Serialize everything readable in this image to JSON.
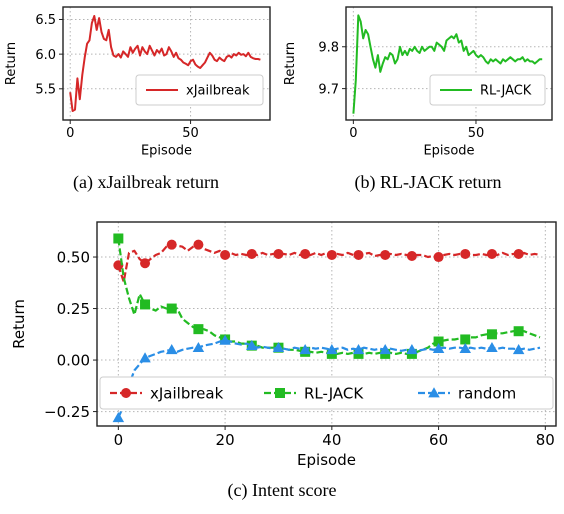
{
  "figures": [
    {
      "caption": "(a)  xJailbreak return",
      "chart_data": {
        "type": "line",
        "xlabel": "Episode",
        "ylabel": "Return",
        "xlim": [
          -3,
          83
        ],
        "ylim": [
          5.05,
          6.68
        ],
        "xticks": [
          0,
          50
        ],
        "yticks": [
          5.5,
          6.0,
          6.5
        ],
        "ytick_labels": [
          "5.5",
          "6.0",
          "6.5"
        ],
        "grid": true,
        "legend_position": "lower-right",
        "series": [
          {
            "name": "xJailbreak",
            "color": "#d62728",
            "x": [
              0,
              1,
              2,
              3,
              4,
              5,
              6,
              7,
              8,
              9,
              10,
              11,
              12,
              13,
              14,
              15,
              16,
              17,
              18,
              19,
              20,
              21,
              22,
              23,
              24,
              25,
              26,
              27,
              28,
              29,
              30,
              31,
              32,
              33,
              34,
              35,
              36,
              37,
              38,
              39,
              40,
              41,
              42,
              43,
              44,
              45,
              46,
              47,
              48,
              49,
              50,
              51,
              52,
              53,
              54,
              55,
              56,
              57,
              58,
              59,
              60,
              61,
              62,
              63,
              64,
              65,
              66,
              67,
              68,
              69,
              70,
              71,
              72,
              73,
              74,
              75,
              76,
              77,
              78,
              79
            ],
            "y": [
              5.45,
              5.18,
              5.2,
              5.65,
              5.35,
              5.7,
              5.95,
              6.15,
              6.2,
              6.45,
              6.55,
              6.35,
              6.52,
              6.32,
              6.22,
              6.2,
              6.35,
              6.1,
              5.98,
              5.96,
              6.0,
              5.95,
              6.04,
              6.0,
              5.96,
              6.1,
              6.02,
              6.08,
              6.12,
              5.98,
              6.1,
              6.04,
              6.0,
              6.12,
              6.05,
              5.98,
              6.06,
              6.02,
              6.08,
              5.98,
              6.0,
              6.1,
              6.04,
              5.96,
              6.02,
              5.94,
              5.92,
              5.88,
              5.86,
              5.84,
              5.9,
              5.92,
              5.85,
              5.82,
              5.8,
              5.84,
              5.88,
              5.95,
              6.02,
              5.98,
              5.92,
              5.9,
              5.95,
              5.92,
              5.9,
              5.96,
              5.98,
              5.95,
              6.0,
              5.98,
              6.02,
              5.99,
              6.0,
              5.97,
              6.02,
              5.96,
              5.94,
              5.93,
              5.93,
              5.92
            ]
          }
        ]
      }
    },
    {
      "caption": "(b)  RL-JACK return",
      "chart_data": {
        "type": "line",
        "xlabel": "Episode",
        "ylabel": "Return",
        "xlim": [
          -3,
          81
        ],
        "ylim": [
          9.625,
          9.895
        ],
        "xticks": [
          0,
          50
        ],
        "yticks": [
          9.7,
          9.8
        ],
        "ytick_labels": [
          "9.7",
          "9.8"
        ],
        "grid": true,
        "legend_position": "lower-right",
        "series": [
          {
            "name": "RL-JACK",
            "color": "#22bb22",
            "x": [
              0,
              1,
              2,
              3,
              4,
              5,
              6,
              7,
              8,
              9,
              10,
              11,
              12,
              13,
              14,
              15,
              16,
              17,
              18,
              19,
              20,
              21,
              22,
              23,
              24,
              25,
              26,
              27,
              28,
              29,
              30,
              31,
              32,
              33,
              34,
              35,
              36,
              37,
              38,
              39,
              40,
              41,
              42,
              43,
              44,
              45,
              46,
              47,
              48,
              49,
              50,
              51,
              52,
              53,
              54,
              55,
              56,
              57,
              58,
              59,
              60,
              61,
              62,
              63,
              64,
              65,
              66,
              67,
              68,
              69,
              70,
              71,
              72,
              73,
              74,
              75,
              76,
              77
            ],
            "y": [
              9.64,
              9.72,
              9.875,
              9.86,
              9.82,
              9.84,
              9.83,
              9.8,
              9.77,
              9.75,
              9.78,
              9.74,
              9.76,
              9.775,
              9.77,
              9.785,
              9.78,
              9.76,
              9.77,
              9.8,
              9.78,
              9.79,
              9.78,
              9.795,
              9.79,
              9.8,
              9.79,
              9.785,
              9.8,
              9.79,
              9.795,
              9.8,
              9.8,
              9.79,
              9.81,
              9.805,
              9.8,
              9.79,
              9.815,
              9.82,
              9.825,
              9.82,
              9.83,
              9.81,
              9.815,
              9.79,
              9.8,
              9.78,
              9.785,
              9.79,
              9.78,
              9.775,
              9.78,
              9.775,
              9.765,
              9.76,
              9.77,
              9.765,
              9.77,
              9.765,
              9.76,
              9.77,
              9.765,
              9.77,
              9.775,
              9.77,
              9.765,
              9.77,
              9.77,
              9.775,
              9.765,
              9.77,
              9.765,
              9.765,
              9.76,
              9.765,
              9.77,
              9.77
            ]
          }
        ]
      }
    },
    {
      "caption": "(c)  Intent score",
      "chart_data": {
        "type": "line",
        "xlabel": "Episode",
        "ylabel": "Return",
        "xlim": [
          -4,
          82
        ],
        "ylim": [
          -0.32,
          0.67
        ],
        "xticks": [
          0,
          20,
          40,
          60,
          80
        ],
        "yticks": [
          -0.25,
          0.0,
          0.25,
          0.5
        ],
        "ytick_labels": [
          "−0.25",
          "0.00",
          "0.25",
          "0.50"
        ],
        "grid": true,
        "legend_position": "bottom",
        "series": [
          {
            "name": "xJailbreak",
            "color": "#d62728",
            "marker": "circle",
            "x": [
              0,
              1,
              2,
              3,
              4,
              5,
              6,
              7,
              8,
              9,
              10,
              11,
              12,
              13,
              14,
              15,
              16,
              17,
              18,
              19,
              20,
              21,
              22,
              23,
              24,
              25,
              26,
              27,
              28,
              29,
              30,
              31,
              32,
              33,
              34,
              35,
              36,
              37,
              38,
              39,
              40,
              41,
              42,
              43,
              44,
              45,
              46,
              47,
              48,
              49,
              50,
              51,
              52,
              53,
              54,
              55,
              56,
              57,
              58,
              59,
              60,
              61,
              62,
              63,
              64,
              65,
              66,
              67,
              68,
              69,
              70,
              71,
              72,
              73,
              74,
              75,
              76,
              77,
              78,
              79
            ],
            "y": [
              0.46,
              0.38,
              0.52,
              0.53,
              0.49,
              0.47,
              0.49,
              0.51,
              0.52,
              0.55,
              0.56,
              0.555,
              0.55,
              0.53,
              0.55,
              0.56,
              0.54,
              0.53,
              0.52,
              0.53,
              0.51,
              0.52,
              0.51,
              0.515,
              0.51,
              0.515,
              0.51,
              0.52,
              0.51,
              0.515,
              0.51,
              0.515,
              0.51,
              0.52,
              0.51,
              0.515,
              0.51,
              0.52,
              0.51,
              0.52,
              0.51,
              0.515,
              0.51,
              0.52,
              0.51,
              0.51,
              0.515,
              0.52,
              0.505,
              0.51,
              0.51,
              0.515,
              0.51,
              0.515,
              0.51,
              0.505,
              0.51,
              0.51,
              0.5,
              0.505,
              0.5,
              0.51,
              0.515,
              0.51,
              0.515,
              0.515,
              0.51,
              0.51,
              0.515,
              0.51,
              0.515,
              0.51,
              0.52,
              0.51,
              0.515,
              0.51,
              0.52,
              0.51,
              0.515,
              0.51
            ],
            "marker_x": [
              0,
              5,
              10,
              15,
              20,
              25,
              30,
              35,
              40,
              45,
              50,
              55,
              60,
              65,
              70,
              75
            ],
            "marker_y": [
              0.46,
              0.47,
              0.56,
              0.56,
              0.51,
              0.515,
              0.515,
              0.515,
              0.51,
              0.51,
              0.51,
              0.505,
              0.5,
              0.515,
              0.515,
              0.515
            ]
          },
          {
            "name": "RL-JACK",
            "color": "#22bb22",
            "marker": "square",
            "x": [
              0,
              1,
              2,
              3,
              4,
              5,
              6,
              7,
              8,
              9,
              10,
              11,
              12,
              13,
              14,
              15,
              16,
              17,
              18,
              19,
              20,
              21,
              22,
              23,
              24,
              25,
              26,
              27,
              28,
              29,
              30,
              31,
              32,
              33,
              34,
              35,
              36,
              37,
              38,
              39,
              40,
              41,
              42,
              43,
              44,
              45,
              46,
              47,
              48,
              49,
              50,
              51,
              52,
              53,
              54,
              55,
              56,
              57,
              58,
              59,
              60,
              61,
              62,
              63,
              64,
              65,
              66,
              67,
              68,
              69,
              70,
              71,
              72,
              73,
              74,
              75,
              76,
              77,
              78,
              79
            ],
            "y": [
              0.59,
              0.4,
              0.3,
              0.22,
              0.32,
              0.27,
              0.25,
              0.24,
              0.26,
              0.25,
              0.25,
              0.25,
              0.2,
              0.18,
              0.16,
              0.15,
              0.15,
              0.14,
              0.12,
              0.11,
              0.1,
              0.09,
              0.09,
              0.08,
              0.08,
              0.07,
              0.07,
              0.06,
              0.06,
              0.06,
              0.06,
              0.055,
              0.05,
              0.05,
              0.045,
              0.04,
              0.04,
              0.035,
              0.04,
              0.035,
              0.03,
              0.03,
              0.035,
              0.03,
              0.035,
              0.03,
              0.03,
              0.035,
              0.03,
              0.035,
              0.03,
              0.035,
              0.03,
              0.035,
              0.03,
              0.03,
              0.04,
              0.05,
              0.06,
              0.08,
              0.09,
              0.095,
              0.1,
              0.1,
              0.105,
              0.1,
              0.11,
              0.11,
              0.12,
              0.125,
              0.125,
              0.13,
              0.13,
              0.135,
              0.14,
              0.14,
              0.14,
              0.13,
              0.12,
              0.11
            ],
            "marker_x": [
              0,
              5,
              10,
              15,
              20,
              25,
              30,
              35,
              40,
              45,
              50,
              55,
              60,
              65,
              70,
              75
            ],
            "marker_y": [
              0.59,
              0.27,
              0.25,
              0.15,
              0.1,
              0.07,
              0.06,
              0.04,
              0.03,
              0.03,
              0.03,
              0.03,
              0.09,
              0.1,
              0.125,
              0.14
            ]
          },
          {
            "name": "random",
            "color": "#2a8ee6",
            "marker": "triangle",
            "x": [
              0,
              1,
              2,
              3,
              4,
              5,
              6,
              7,
              8,
              9,
              10,
              11,
              12,
              13,
              14,
              15,
              16,
              17,
              18,
              19,
              20,
              21,
              22,
              23,
              24,
              25,
              26,
              27,
              28,
              29,
              30,
              31,
              32,
              33,
              34,
              35,
              36,
              37,
              38,
              39,
              40,
              41,
              42,
              43,
              44,
              45,
              46,
              47,
              48,
              49,
              50,
              51,
              52,
              53,
              54,
              55,
              56,
              57,
              58,
              59,
              60,
              61,
              62,
              63,
              64,
              65,
              66,
              67,
              68,
              69,
              70,
              71,
              72,
              73,
              74,
              75,
              76,
              77,
              78,
              79
            ],
            "y": [
              -0.28,
              -0.22,
              -0.12,
              -0.05,
              -0.02,
              0.01,
              0.02,
              0.03,
              0.04,
              0.045,
              0.05,
              0.04,
              0.05,
              0.055,
              0.06,
              0.06,
              0.07,
              0.075,
              0.08,
              0.09,
              0.095,
              0.09,
              0.08,
              0.075,
              0.08,
              0.07,
              0.06,
              0.065,
              0.06,
              0.055,
              0.06,
              0.055,
              0.05,
              0.06,
              0.055,
              0.05,
              0.06,
              0.055,
              0.06,
              0.055,
              0.05,
              0.055,
              0.06,
              0.05,
              0.055,
              0.05,
              0.06,
              0.055,
              0.05,
              0.055,
              0.05,
              0.055,
              0.05,
              0.045,
              0.05,
              0.05,
              0.045,
              0.05,
              0.055,
              0.05,
              0.055,
              0.06,
              0.055,
              0.06,
              0.06,
              0.055,
              0.06,
              0.055,
              0.06,
              0.055,
              0.06,
              0.055,
              0.06,
              0.055,
              0.055,
              0.05,
              0.055,
              0.05,
              0.055,
              0.06
            ],
            "marker_x": [
              0,
              5,
              10,
              15,
              20,
              25,
              30,
              35,
              40,
              45,
              50,
              55,
              60,
              65,
              70,
              75
            ],
            "marker_y": [
              -0.28,
              0.01,
              0.05,
              0.06,
              0.095,
              0.07,
              0.06,
              0.05,
              0.05,
              0.05,
              0.05,
              0.05,
              0.055,
              0.055,
              0.06,
              0.05
            ]
          }
        ]
      }
    }
  ]
}
